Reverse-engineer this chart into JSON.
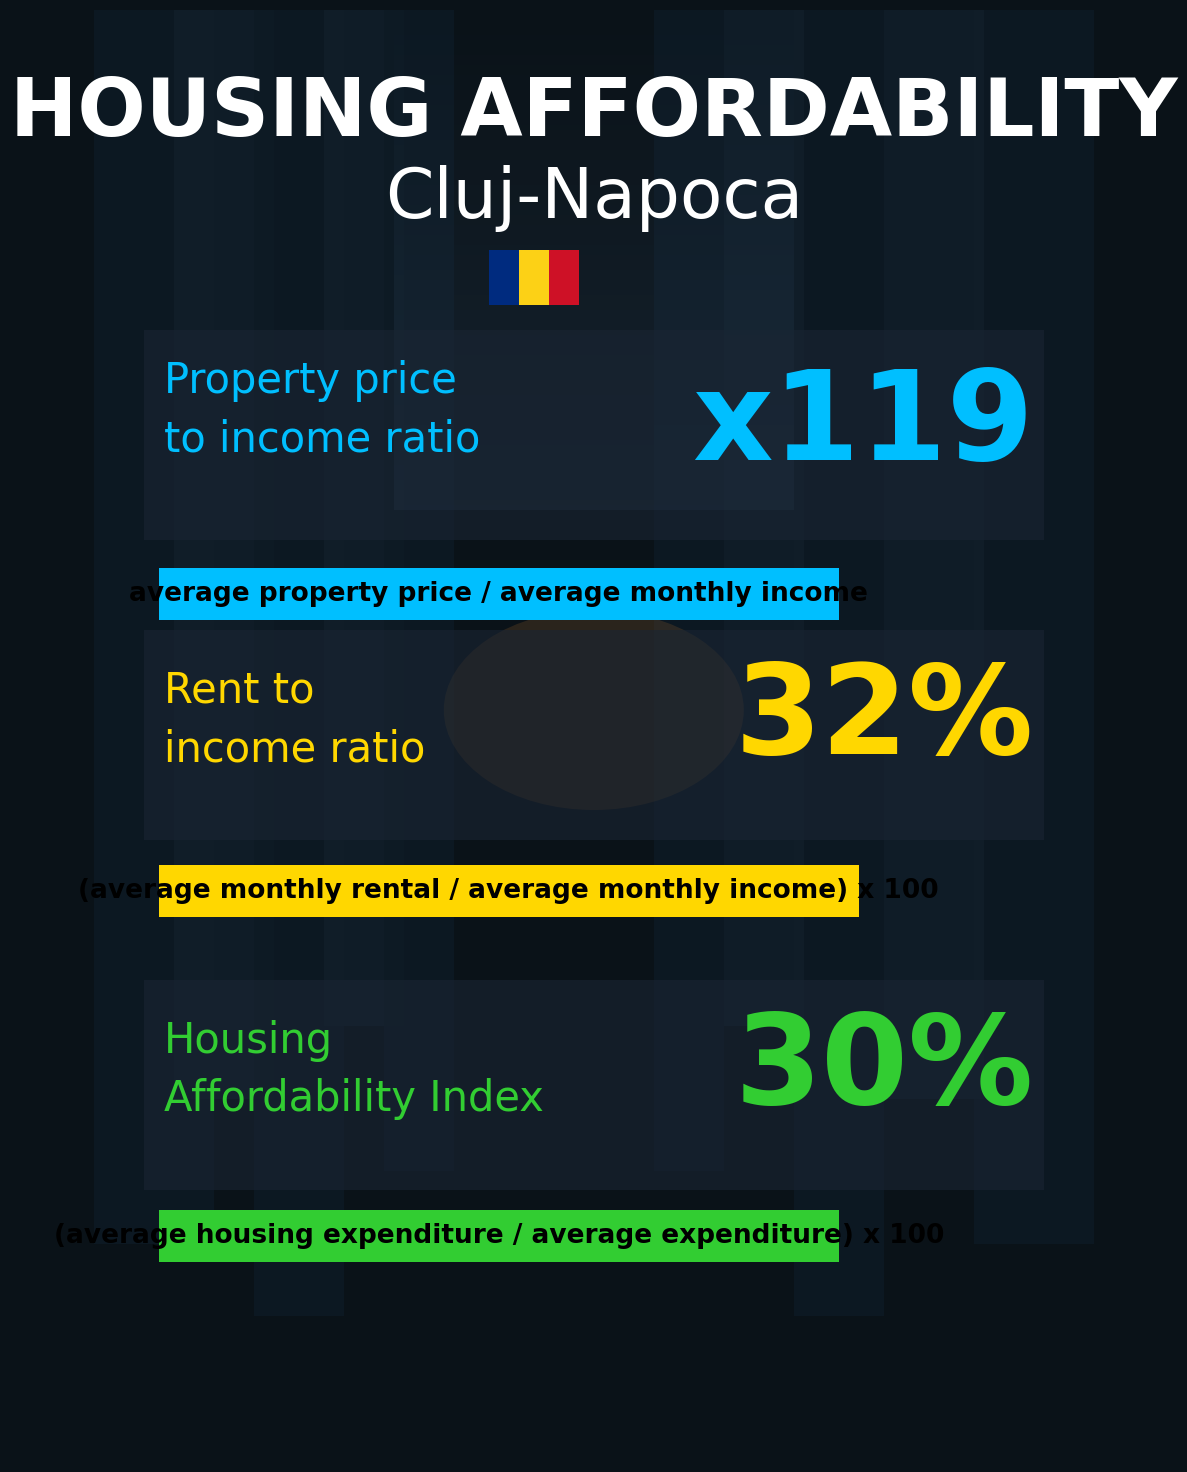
{
  "title_line1": "HOUSING AFFORDABILITY",
  "title_line2": "Cluj-Napoca",
  "title_color": "#ffffff",
  "title_fontsize": 58,
  "subtitle_fontsize": 50,
  "bg_color": "#0a1218",
  "section1_label": "Property price\nto income ratio",
  "section1_value": "x119",
  "section1_label_color": "#00bfff",
  "section1_value_color": "#00bfff",
  "section1_formula": "average property price / average monthly income",
  "section1_formula_bg": "#00bfff",
  "section2_label": "Rent to\nincome ratio",
  "section2_value": "32%",
  "section2_label_color": "#ffd700",
  "section2_value_color": "#ffd700",
  "section2_formula": "(average monthly rental / average monthly income) x 100",
  "section2_formula_bg": "#ffd700",
  "section3_label": "Housing\nAffordability Index",
  "section3_value": "30%",
  "section3_label_color": "#32cd32",
  "section3_value_color": "#32cd32",
  "section3_formula": "(average housing expenditure / average expenditure) x 100",
  "section3_formula_bg": "#32cd32",
  "label_fontsize": 30,
  "value_fontsize": 90,
  "formula_fontsize": 19,
  "romania_flag_colors": [
    "#002b7f",
    "#fcd116",
    "#ce1126"
  ],
  "panel_color": "#1a2533",
  "panel_alpha": 0.6
}
